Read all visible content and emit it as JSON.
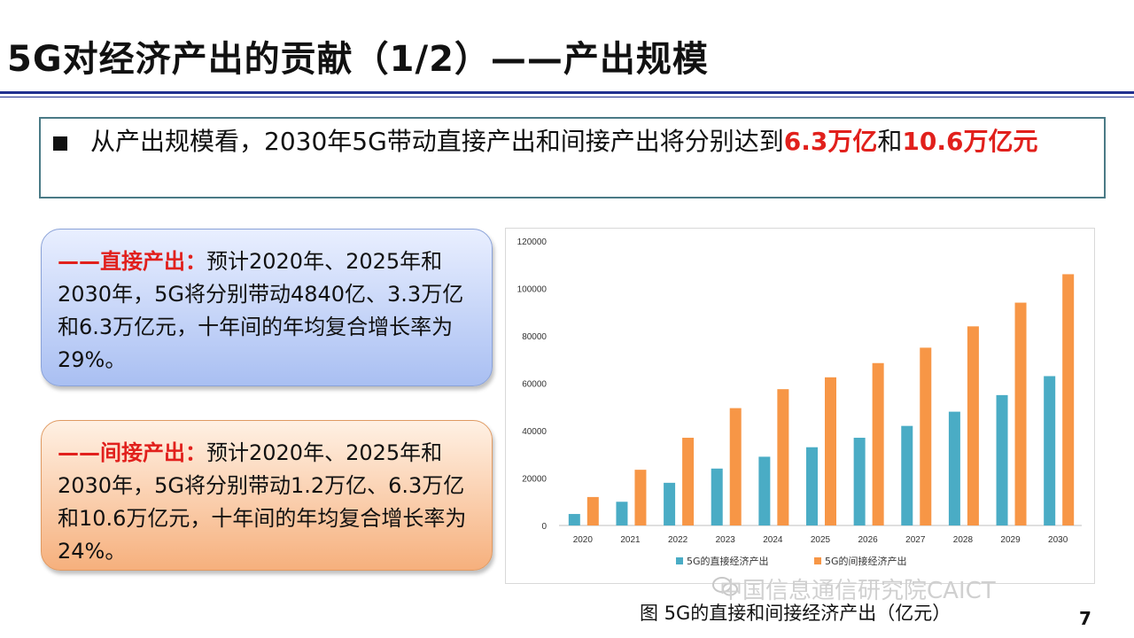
{
  "slide": {
    "title": "5G对经济产出的贡献（1/2）——产出规模",
    "page_number": "7"
  },
  "summary": {
    "text_before": "从产出规模看，2030年5G带动直接产出和间接产出将分别达到",
    "highlight1": "6.3万亿",
    "middle": "和",
    "highlight2": "10.6万亿元"
  },
  "direct": {
    "lead": "——直接产出：",
    "text": "预计2020年、2025年和2030年，5G将分别带动4840亿、3.3万亿和6.3万亿元，十年间的年均复合增长率为29%。"
  },
  "indirect": {
    "lead": "——间接产出：",
    "text": "预计2020年、2025年和2030年，5G将分别带动1.2万亿、6.3万亿和10.6万亿元，十年间的年均复合增长率为24%。"
  },
  "caption": "图 5G的直接和间接经济产出（亿元）",
  "watermark": "中国信息通信研究院CAICT",
  "colors": {
    "direct": "#4aacc5",
    "indirect": "#f79646",
    "title_rule": "#1f2f8f",
    "highlight": "#e1201c"
  },
  "chart_data": {
    "type": "bar",
    "categories": [
      "2020",
      "2021",
      "2022",
      "2023",
      "2024",
      "2025",
      "2026",
      "2027",
      "2028",
      "2029",
      "2030"
    ],
    "series": [
      {
        "name": "5G的直接经济产出",
        "values": [
          4840,
          10000,
          18000,
          24000,
          29000,
          33000,
          37000,
          42000,
          48000,
          55000,
          63000
        ]
      },
      {
        "name": "5G的间接经济产出",
        "values": [
          12000,
          23500,
          37000,
          49500,
          57500,
          62500,
          68500,
          75000,
          84000,
          94000,
          106000
        ]
      }
    ],
    "ylim": [
      0,
      120000
    ],
    "yticks": [
      0,
      20000,
      40000,
      60000,
      80000,
      100000,
      120000
    ],
    "legend": "bottom",
    "grid": false
  }
}
